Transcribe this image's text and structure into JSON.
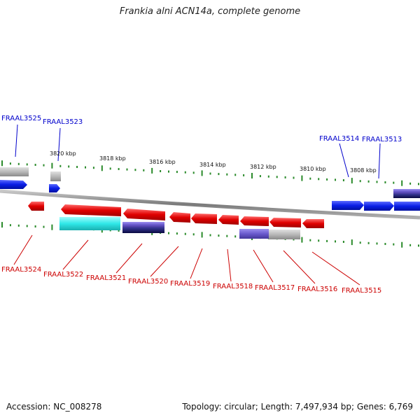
{
  "title": "Frankia alni ACN14a, complete genome",
  "footer": {
    "accession": "Accession: NC_008278",
    "topology": "Topology: circular; Length: 7,497,934 bp; Genes: 6,769"
  },
  "colors": {
    "forward_label": "#0000cc",
    "reverse_label": "#cc0000",
    "tick": "#2a8a2a",
    "backbone": "#8a8a8a"
  },
  "scale_labels": [
    "3820 kbp",
    "3818 kbp",
    "3816 kbp",
    "3814 kbp",
    "3812 kbp",
    "3810 kbp",
    "3808 kbp"
  ],
  "forward_genes": [
    "FRAAL3525",
    "FRAAL3523",
    "FRAAL3514",
    "FRAAL3513"
  ],
  "reverse_genes": [
    "FRAAL3524",
    "FRAAL3522",
    "FRAAL3521",
    "FRAAL3520",
    "FRAAL3519",
    "FRAAL3518",
    "FRAAL3517",
    "FRAAL3516",
    "FRAAL3515"
  ],
  "feature_colors": {
    "cds_forward": "#0a1ee6",
    "cds_reverse": "#e60a0a",
    "gene": "#b4b4b4",
    "rrna": "#2fe8e8",
    "misc": "#6a5acd"
  }
}
